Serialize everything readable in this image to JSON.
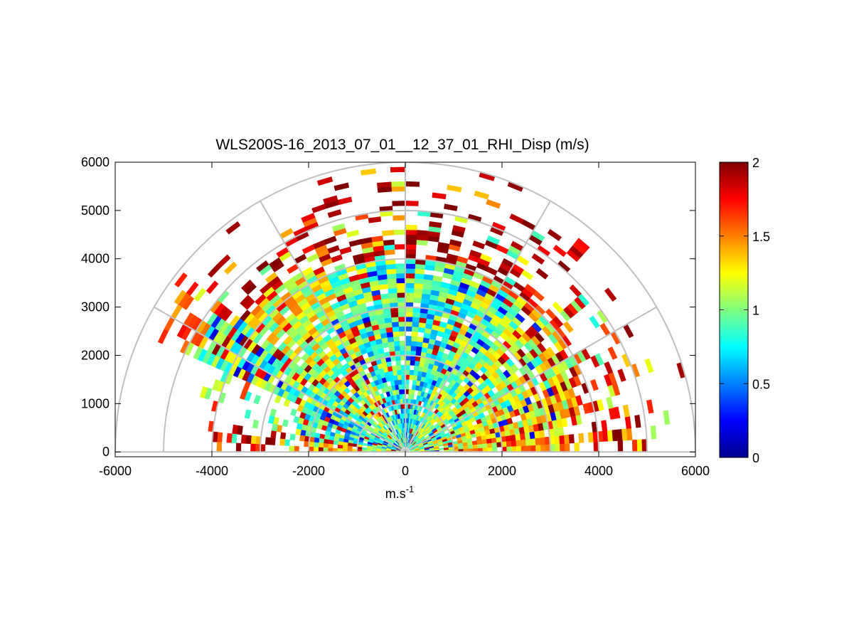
{
  "chart_data": {
    "type": "heatmap",
    "subtype": "polar-rhi-scan",
    "title": "WLS200S-16_2013_07_01__12_37_01_RHI_Disp (m/s)",
    "xlabel_base": "m.s",
    "xlabel_exp": "-1",
    "ylabel": "",
    "xlim": [
      -6000,
      6000
    ],
    "ylim": [
      -100,
      6000
    ],
    "xticks": [
      -6000,
      -4000,
      -2000,
      0,
      2000,
      4000,
      6000
    ],
    "yticks": [
      0,
      1000,
      2000,
      3000,
      4000,
      5000,
      6000
    ],
    "xtick_labels": [
      "-6000",
      "-4000",
      "-2000",
      "0",
      "2000",
      "4000",
      "6000"
    ],
    "ytick_labels": [
      "0",
      "1000",
      "2000",
      "3000",
      "4000",
      "5000",
      "6000"
    ],
    "polar_grid": {
      "range_rings_m": [
        1000,
        2000,
        3000,
        4000,
        5000,
        6000
      ],
      "spokes_deg": [
        30,
        60,
        90,
        120,
        150
      ]
    },
    "colorbar": {
      "colormap": "jet",
      "clim": [
        0,
        2
      ],
      "ticks": [
        0,
        0.5,
        1,
        1.5,
        2
      ],
      "tick_labels": [
        "0",
        "0.5",
        "1",
        "1.5",
        "2"
      ]
    },
    "scan": {
      "angle_step_deg": 3,
      "range_gate_m": 100,
      "max_range_m": 6000
    },
    "sectors": [
      {
        "from_deg": 0,
        "to_deg": 12,
        "core_range_m": 3300,
        "core_mean": 1.2,
        "edge_range_m": 5400,
        "edge_mean": 1.85
      },
      {
        "from_deg": 12,
        "to_deg": 24,
        "core_range_m": 3600,
        "core_mean": 1.1,
        "edge_range_m": 5400,
        "edge_mean": 1.8
      },
      {
        "from_deg": 24,
        "to_deg": 48,
        "core_range_m": 3900,
        "core_mean": 0.95,
        "edge_range_m": 4900,
        "edge_mean": 1.75
      },
      {
        "from_deg": 48,
        "to_deg": 66,
        "core_range_m": 3800,
        "core_mean": 0.9,
        "edge_range_m": 5600,
        "edge_mean": 1.9
      },
      {
        "from_deg": 66,
        "to_deg": 114,
        "core_range_m": 3900,
        "core_mean": 0.75,
        "edge_range_m": 6000,
        "edge_mean": 1.95
      },
      {
        "from_deg": 114,
        "to_deg": 140,
        "core_range_m": 4200,
        "core_mean": 1.0,
        "edge_range_m": 5200,
        "edge_mean": 1.85
      },
      {
        "from_deg": 140,
        "to_deg": 157,
        "core_range_m": 4700,
        "core_mean": 0.8,
        "edge_range_m": 5800,
        "edge_mean": 1.6
      },
      {
        "from_deg": 157,
        "to_deg": 170,
        "core_range_m": 2200,
        "core_mean": 0.7,
        "edge_range_m": 4300,
        "edge_mean": 1.0
      },
      {
        "from_deg": 170,
        "to_deg": 180,
        "core_range_m": 2000,
        "core_mean": 1.1,
        "edge_range_m": 4000,
        "edge_mean": 1.9
      }
    ]
  }
}
